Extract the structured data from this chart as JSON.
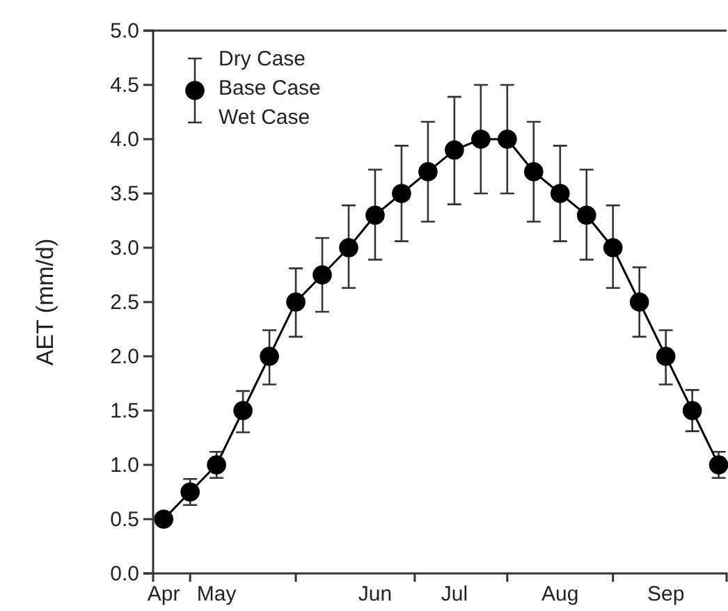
{
  "chart_data": {
    "type": "line",
    "ylabel": "AET (mm/d)",
    "categories": [
      "Apr",
      null,
      "May",
      null,
      null,
      null,
      null,
      null,
      "Jun",
      null,
      null,
      "Jul",
      null,
      null,
      null,
      "Aug",
      null,
      null,
      null,
      "Sep",
      null,
      null
    ],
    "ylim": [
      0,
      5
    ],
    "yticks": [
      {
        "value": 0,
        "label": "0.0"
      },
      {
        "value": 0.5,
        "label": "0.5"
      },
      {
        "value": 1,
        "label": "1.0"
      },
      {
        "value": 1.5,
        "label": "1.5"
      },
      {
        "value": 2,
        "label": "2.0"
      },
      {
        "value": 2.5,
        "label": "2.5"
      },
      {
        "value": 3,
        "label": "3.0"
      },
      {
        "value": 3.5,
        "label": "3.5"
      },
      {
        "value": 4,
        "label": "4.0"
      },
      {
        "value": 4.5,
        "label": "4.5"
      },
      {
        "value": 5,
        "label": "5.0"
      }
    ],
    "series": [
      {
        "name": "Base Case",
        "color": "#000000",
        "values": [
          0.5,
          0.75,
          1.0,
          1.5,
          2.0,
          2.5,
          2.75,
          3.0,
          3.3,
          3.5,
          3.7,
          3.9,
          4.0,
          4.0,
          3.7,
          3.5,
          3.3,
          3.0,
          2.5,
          2.0,
          1.5,
          1.0
        ],
        "errors": [
          null,
          [
            0.63,
            0.87
          ],
          [
            0.88,
            1.12
          ],
          [
            1.3,
            1.68
          ],
          [
            1.74,
            2.24
          ],
          [
            2.18,
            2.81
          ],
          [
            2.41,
            3.09
          ],
          [
            2.63,
            3.39
          ],
          [
            2.89,
            3.72
          ],
          [
            3.06,
            3.94
          ],
          [
            3.24,
            4.16
          ],
          [
            3.4,
            4.39
          ],
          [
            3.5,
            4.5
          ],
          [
            3.5,
            4.5
          ],
          [
            3.24,
            4.16
          ],
          [
            3.06,
            3.94
          ],
          [
            2.89,
            3.72
          ],
          [
            2.63,
            3.39
          ],
          [
            2.18,
            2.82
          ],
          [
            1.74,
            2.24
          ],
          [
            1.31,
            1.69
          ],
          [
            0.88,
            1.12
          ]
        ]
      }
    ],
    "annotations": [
      "Dry Case",
      "Wet Case"
    ],
    "marker": "circle",
    "legend": "top left",
    "grid": false
  }
}
